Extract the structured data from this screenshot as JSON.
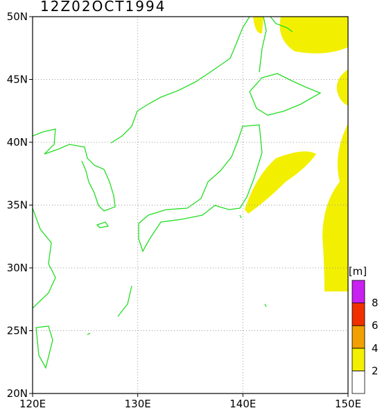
{
  "title": "12Z02OCT1994",
  "map": {
    "xlim": [
      120,
      150
    ],
    "ylim": [
      20,
      50
    ],
    "xticks": [
      {
        "value": 120,
        "label": "120E"
      },
      {
        "value": 130,
        "label": "130E"
      },
      {
        "value": 140,
        "label": "140E"
      },
      {
        "value": 150,
        "label": "150E"
      }
    ],
    "yticks": [
      {
        "value": 20,
        "label": "20N"
      },
      {
        "value": 25,
        "label": "25N"
      },
      {
        "value": 30,
        "label": "30N"
      },
      {
        "value": 35,
        "label": "35N"
      },
      {
        "value": 40,
        "label": "40N"
      },
      {
        "value": 45,
        "label": "45N"
      },
      {
        "value": 50,
        "label": "50N"
      }
    ],
    "grid": true,
    "colorbar": {
      "unit": "[m]",
      "bounds": [
        0,
        2,
        4,
        6,
        8,
        10
      ],
      "colors": [
        "#ffffff",
        "#f2f000",
        "#f0a000",
        "#f03000",
        "#c820f0"
      ],
      "ticks": [
        2,
        4,
        6,
        8
      ]
    }
  }
}
